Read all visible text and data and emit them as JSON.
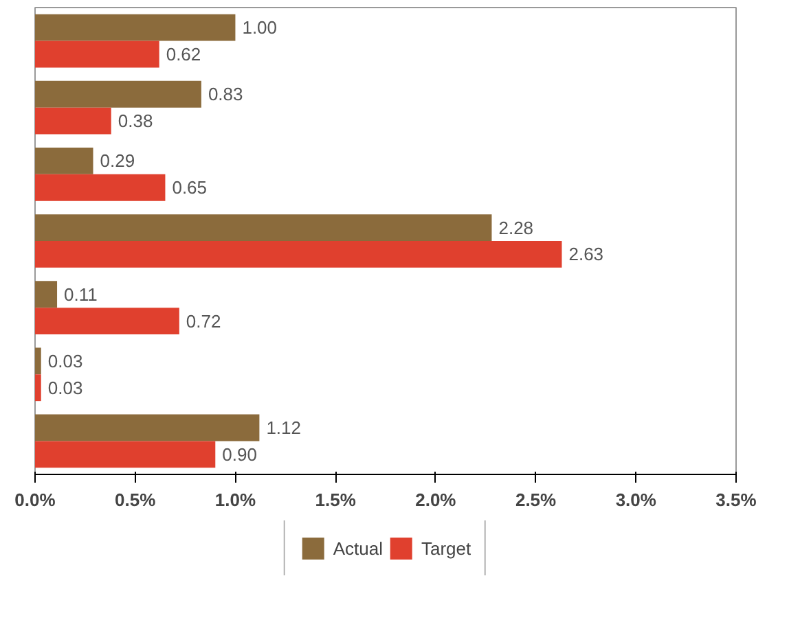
{
  "chart_data": {
    "type": "bar",
    "orientation": "horizontal",
    "categories": [
      null,
      null,
      null,
      null,
      null,
      null,
      null
    ],
    "series": [
      {
        "name": "Actual",
        "color": "#8b6b3c",
        "values": [
          1.0,
          0.83,
          0.29,
          2.28,
          0.11,
          0.03,
          1.12
        ],
        "value_labels": [
          "1.00",
          "0.83",
          "0.29",
          "2.28",
          "0.11",
          "0.03",
          "1.12"
        ]
      },
      {
        "name": "Target",
        "color": "#e0402e",
        "values": [
          0.62,
          0.38,
          0.65,
          2.63,
          0.72,
          0.03,
          0.9
        ],
        "value_labels": [
          "0.62",
          "0.38",
          "0.65",
          "2.63",
          "0.72",
          "0.03",
          "0.90"
        ]
      }
    ],
    "xlim": [
      0,
      3.5
    ],
    "xticks": [
      {
        "value": 0,
        "label": "0.0%"
      },
      {
        "value": 0.5,
        "label": "0.5%"
      },
      {
        "value": 1,
        "label": "1.0%"
      },
      {
        "value": 1.5,
        "label": "1.5%"
      },
      {
        "value": 2,
        "label": "2.0%"
      },
      {
        "value": 2.5,
        "label": "2.5%"
      },
      {
        "value": 3,
        "label": "3.0%"
      },
      {
        "value": 3.5,
        "label": "3.5%"
      }
    ],
    "tick_labels": "x",
    "legend": "bottom"
  }
}
